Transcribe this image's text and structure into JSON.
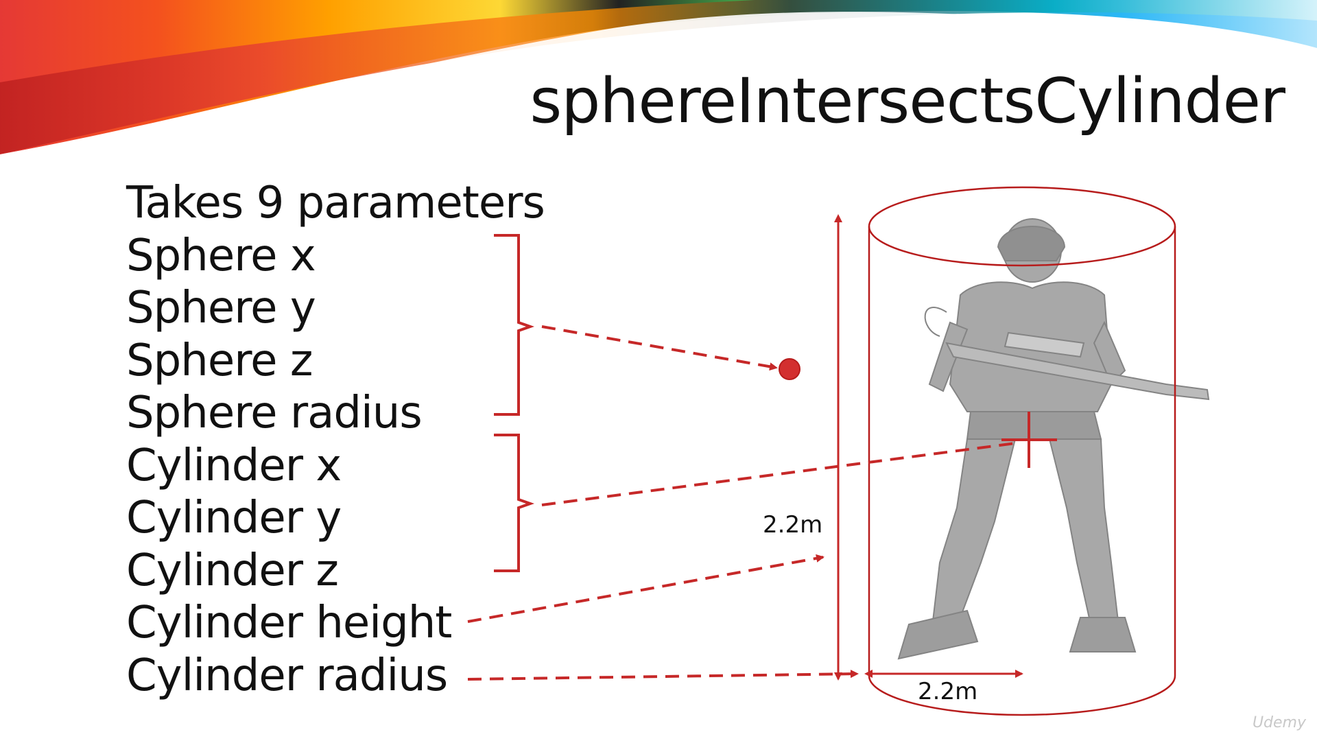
{
  "slide": {
    "title": "sphereIntersectsCylinder",
    "parameters": [
      "Takes 9 parameters",
      "Sphere x",
      "Sphere y",
      "Sphere z",
      "Sphere radius",
      "Cylinder x",
      "Cylinder y",
      "Cylinder z",
      "Cylinder height",
      "Cylinder radius"
    ],
    "height_label": "2.2m",
    "width_label": "2.2m",
    "watermark": "Udemy"
  },
  "colors": {
    "accent_red": "#c62828",
    "sphere_fill": "#d32f2f",
    "text": "#111111",
    "soldier_gray": "#9a9a9a"
  }
}
